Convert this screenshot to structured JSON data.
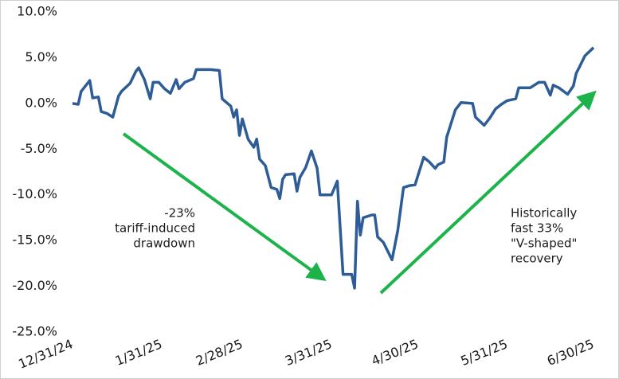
{
  "chart_data": {
    "type": "line",
    "color": "#2e5c97",
    "x": [
      "12/31/24",
      "1/2/25",
      "1/3/25",
      "1/6/25",
      "1/7/25",
      "1/9/25",
      "1/10/25",
      "1/12/25",
      "1/14/25",
      "1/16/25",
      "1/17/25",
      "1/20/25",
      "1/22/25",
      "1/23/25",
      "1/25/25",
      "1/27/25",
      "1/28/25",
      "1/30/25",
      "2/1/25",
      "2/3/25",
      "2/5/25",
      "2/6/25",
      "2/8/25",
      "2/11/25",
      "2/12/25",
      "2/17/25",
      "2/20/25",
      "2/21/25",
      "2/24/25",
      "2/25/25",
      "2/26/25",
      "2/27/25",
      "2/28/25",
      "3/2/25",
      "3/4/25",
      "3/5/25",
      "3/6/25",
      "3/8/25",
      "3/10/25",
      "3/12/25",
      "3/13/25",
      "3/14/25",
      "3/15/25",
      "3/18/25",
      "3/19/25",
      "3/20/25",
      "3/22/25",
      "3/24/25",
      "3/26/25",
      "3/27/25",
      "3/31/25",
      "4/2/25",
      "4/4/25",
      "4/7/25",
      "4/8/25",
      "4/9/25",
      "4/10/25",
      "4/11/25",
      "4/14/25",
      "4/15/25",
      "4/16/25",
      "4/18/25",
      "4/21/25",
      "4/23/25",
      "4/25/25",
      "4/27/25",
      "4/29/25",
      "5/2/25",
      "5/4/25",
      "5/6/25",
      "5/7/25",
      "5/9/25",
      "5/10/25",
      "5/13/25",
      "5/15/25",
      "5/19/25",
      "5/20/25",
      "5/23/25",
      "5/25/25",
      "5/27/25",
      "5/29/25",
      "5/31/25",
      "6/3/25",
      "6/4/25",
      "6/8/25",
      "6/11/25",
      "6/13/25",
      "6/15/25",
      "6/16/25",
      "6/18/25",
      "6/21/25",
      "6/23/25",
      "6/24/25",
      "6/25/25",
      "6/27/25",
      "6/30/25"
    ],
    "values": [
      0.0,
      -0.1,
      1.3,
      2.5,
      0.6,
      0.7,
      -0.9,
      -1.1,
      -1.5,
      0.8,
      1.3,
      2.2,
      3.5,
      3.9,
      2.6,
      0.5,
      2.3,
      2.3,
      1.6,
      1.1,
      2.6,
      1.6,
      2.3,
      2.7,
      3.7,
      3.7,
      3.6,
      0.5,
      -0.3,
      -1.5,
      -0.7,
      -3.5,
      -1.7,
      -3.9,
      -4.8,
      -3.9,
      -6.1,
      -6.8,
      -9.2,
      -9.4,
      -10.4,
      -8.3,
      -7.8,
      -7.7,
      -9.6,
      -8.1,
      -7.0,
      -5.2,
      -7.1,
      -10.0,
      -10.0,
      -8.5,
      -18.7,
      -18.7,
      -20.2,
      -10.7,
      -14.4,
      -12.5,
      -12.2,
      -12.2,
      -14.6,
      -15.2,
      -17.1,
      -13.9,
      -9.2,
      -9.0,
      -8.9,
      -5.9,
      -6.4,
      -7.1,
      -6.7,
      -6.4,
      -3.7,
      -0.7,
      0.1,
      0.0,
      -1.5,
      -2.4,
      -1.6,
      -0.6,
      -0.1,
      0.3,
      0.5,
      1.7,
      1.7,
      2.3,
      2.3,
      0.9,
      2.0,
      1.7,
      1.0,
      1.9,
      3.3,
      3.9,
      5.2,
      6.1
    ],
    "xlim": [
      "12/31/24",
      "6/30/25"
    ],
    "xticks": [
      "12/31/24",
      "1/31/25",
      "2/28/25",
      "3/31/25",
      "4/30/25",
      "5/31/25",
      "6/30/25"
    ],
    "ylim": [
      -25,
      10
    ],
    "yticks": [
      {
        "value": 10,
        "label": "10.0%"
      },
      {
        "value": 5,
        "label": "5.0%"
      },
      {
        "value": 0,
        "label": "0.0%"
      },
      {
        "value": -5,
        "label": "-5.0%"
      },
      {
        "value": -10,
        "label": "-10.0%"
      },
      {
        "value": -15,
        "label": "-15.0%"
      },
      {
        "value": -20,
        "label": "-20.0%"
      },
      {
        "value": -25,
        "label": "-25.0%"
      }
    ],
    "grid": false,
    "annotations": [
      {
        "lines": [
          "-23%",
          "tariff-induced",
          "drawdown"
        ]
      },
      {
        "lines": [
          "Historically",
          "fast 33%",
          "\"V-shaped\"",
          "recovery"
        ]
      }
    ]
  }
}
